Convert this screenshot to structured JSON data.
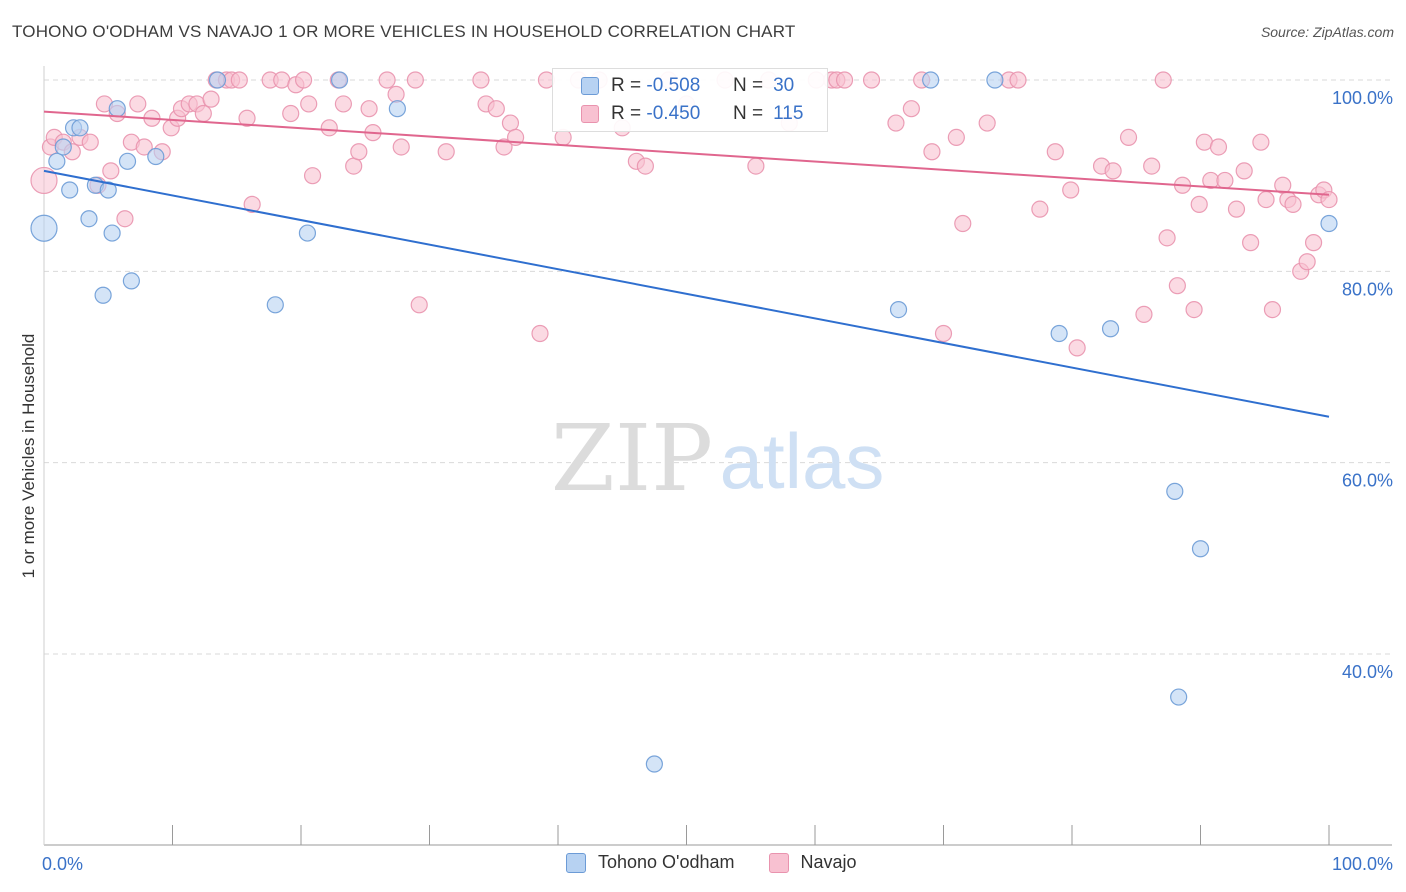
{
  "header": {
    "title": "TOHONO O'ODHAM VS NAVAJO 1 OR MORE VEHICLES IN HOUSEHOLD CORRELATION CHART",
    "source": "Source: ZipAtlas.com"
  },
  "watermark": {
    "zip": "ZIP",
    "atlas": "atlas"
  },
  "stats_legend": [
    {
      "r_label": "R =",
      "r_value": "-0.508",
      "n_label": "N =",
      "n_value": "30"
    },
    {
      "r_label": "R =",
      "r_value": "-0.450",
      "n_label": "N =",
      "n_value": "115"
    }
  ],
  "colors": {
    "tohono_fill": "#b7d2f2",
    "tohono_stroke": "#6c9bd6",
    "tohono_line": "#2f6fcf",
    "navajo_fill": "#f8c1d1",
    "navajo_stroke": "#e993ae",
    "navajo_line": "#e0668e",
    "axis_text": "#3a72c8",
    "grid": "#d9d9d9"
  },
  "chart_data": {
    "type": "scatter",
    "title": "TOHONO O'ODHAM VS NAVAJO 1 OR MORE VEHICLES IN HOUSEHOLD CORRELATION CHART",
    "xlabel": "",
    "ylabel": "1 or more Vehicles in Household",
    "xlim": [
      0,
      100
    ],
    "ylim": [
      20,
      102
    ],
    "x_tick_labels": [
      "0.0%",
      "100.0%"
    ],
    "y_ticks": [
      40,
      60,
      80,
      100
    ],
    "y_tick_labels": [
      "40.0%",
      "60.0%",
      "80.0%",
      "100.0%"
    ],
    "grid": true,
    "legend_position": "bottom-center",
    "series": [
      {
        "name": "Tohono O'odham",
        "r": -0.508,
        "n": 30,
        "trend": {
          "x": [
            0,
            100
          ],
          "y": [
            90.5,
            64.8
          ]
        },
        "points": [
          [
            0,
            84.5,
            1
          ],
          [
            1,
            91.5,
            0
          ],
          [
            1.5,
            93,
            0
          ],
          [
            2,
            88.5,
            0
          ],
          [
            2.3,
            95,
            0
          ],
          [
            2.8,
            95,
            0
          ],
          [
            3.5,
            85.5,
            0
          ],
          [
            4,
            89,
            0
          ],
          [
            4.6,
            77.5,
            0
          ],
          [
            5,
            88.5,
            0
          ],
          [
            5.3,
            84,
            0
          ],
          [
            5.7,
            97,
            0
          ],
          [
            6.5,
            91.5,
            0
          ],
          [
            6.8,
            79,
            0
          ],
          [
            8.7,
            92,
            0
          ],
          [
            13.5,
            100,
            0
          ],
          [
            18,
            76.5,
            0
          ],
          [
            20.5,
            84,
            0
          ],
          [
            23,
            100,
            0
          ],
          [
            27.5,
            97,
            0
          ],
          [
            47.5,
            28.5,
            0
          ],
          [
            66.5,
            76,
            0
          ],
          [
            69,
            100,
            0
          ],
          [
            74,
            100,
            0
          ],
          [
            79,
            73.5,
            0
          ],
          [
            83,
            74,
            0
          ],
          [
            88,
            57,
            0
          ],
          [
            88.3,
            35.5,
            0
          ],
          [
            90,
            51,
            0
          ],
          [
            100,
            85,
            0
          ]
        ]
      },
      {
        "name": "Navajo",
        "r": -0.45,
        "n": 115,
        "trend": {
          "x": [
            0,
            100
          ],
          "y": [
            96.7,
            88.0
          ]
        },
        "points": [
          [
            0,
            89.5,
            1
          ],
          [
            0.5,
            93,
            0
          ],
          [
            0.8,
            94,
            0
          ],
          [
            1.5,
            93.5,
            0
          ],
          [
            2.2,
            92.5,
            0
          ],
          [
            2.8,
            94,
            0
          ],
          [
            3.6,
            93.5,
            0
          ],
          [
            4.2,
            89,
            0
          ],
          [
            4.7,
            97.5,
            0
          ],
          [
            5.2,
            90.5,
            0
          ],
          [
            5.7,
            96.5,
            0
          ],
          [
            6.3,
            85.5,
            0
          ],
          [
            6.8,
            93.5,
            0
          ],
          [
            7.3,
            97.5,
            0
          ],
          [
            7.8,
            93,
            0
          ],
          [
            8.4,
            96,
            0
          ],
          [
            9.2,
            92.5,
            0
          ],
          [
            9.9,
            95,
            0
          ],
          [
            10.4,
            96,
            0
          ],
          [
            10.7,
            97,
            0
          ],
          [
            11.3,
            97.5,
            0
          ],
          [
            11.9,
            97.5,
            0
          ],
          [
            12.4,
            96.5,
            0
          ],
          [
            13,
            98,
            0
          ],
          [
            13.4,
            100,
            0
          ],
          [
            14.2,
            100,
            0
          ],
          [
            14.6,
            100,
            0
          ],
          [
            15.2,
            100,
            0
          ],
          [
            15.8,
            96,
            0
          ],
          [
            16.2,
            87,
            0
          ],
          [
            17.6,
            100,
            0
          ],
          [
            18.5,
            100,
            0
          ],
          [
            19.2,
            96.5,
            0
          ],
          [
            19.6,
            99.5,
            0
          ],
          [
            20.2,
            100,
            0
          ],
          [
            20.6,
            97.5,
            0
          ],
          [
            20.9,
            90,
            0
          ],
          [
            22.2,
            95,
            0
          ],
          [
            22.9,
            100,
            0
          ],
          [
            23.3,
            97.5,
            0
          ],
          [
            24.1,
            91,
            0
          ],
          [
            24.5,
            92.5,
            0
          ],
          [
            25.3,
            97,
            0
          ],
          [
            25.6,
            94.5,
            0
          ],
          [
            26.7,
            100,
            0
          ],
          [
            27.4,
            98.5,
            0
          ],
          [
            27.8,
            93,
            0
          ],
          [
            28.9,
            100,
            0
          ],
          [
            29.2,
            76.5,
            0
          ],
          [
            31.3,
            92.5,
            0
          ],
          [
            34,
            100,
            0
          ],
          [
            34.4,
            97.5,
            0
          ],
          [
            35.2,
            97,
            0
          ],
          [
            35.8,
            93,
            0
          ],
          [
            36.3,
            95.5,
            0
          ],
          [
            36.7,
            94,
            0
          ],
          [
            38.6,
            73.5,
            0
          ],
          [
            39.1,
            100,
            0
          ],
          [
            40.4,
            94,
            0
          ],
          [
            41.6,
            100,
            0
          ],
          [
            43.2,
            100,
            0
          ],
          [
            45,
            95,
            0
          ],
          [
            46.1,
            91.5,
            0
          ],
          [
            46.8,
            91,
            0
          ],
          [
            48.6,
            100,
            0
          ],
          [
            50,
            97.5,
            0
          ],
          [
            53,
            100,
            0
          ],
          [
            55.4,
            91,
            0
          ],
          [
            56.4,
            100,
            0
          ],
          [
            58,
            95.5,
            0
          ],
          [
            60.1,
            100,
            0
          ],
          [
            61.3,
            100,
            0
          ],
          [
            61.7,
            100,
            0
          ],
          [
            62.3,
            100,
            0
          ],
          [
            64.4,
            100,
            0
          ],
          [
            66.3,
            95.5,
            0
          ],
          [
            67.5,
            97,
            0
          ],
          [
            68.3,
            100,
            0
          ],
          [
            69.1,
            92.5,
            0
          ],
          [
            70,
            73.5,
            0
          ],
          [
            71,
            94,
            0
          ],
          [
            71.5,
            85,
            0
          ],
          [
            73.4,
            95.5,
            0
          ],
          [
            75.1,
            100,
            0
          ],
          [
            75.8,
            100,
            0
          ],
          [
            77.5,
            86.5,
            0
          ],
          [
            78.7,
            92.5,
            0
          ],
          [
            79.9,
            88.5,
            0
          ],
          [
            80.4,
            72,
            0
          ],
          [
            82.3,
            91,
            0
          ],
          [
            83.2,
            90.5,
            0
          ],
          [
            84.4,
            94,
            0
          ],
          [
            85.6,
            75.5,
            0
          ],
          [
            86.2,
            91,
            0
          ],
          [
            87.1,
            100,
            0
          ],
          [
            87.4,
            83.5,
            0
          ],
          [
            88.2,
            78.5,
            0
          ],
          [
            88.6,
            89,
            0
          ],
          [
            89.5,
            76,
            0
          ],
          [
            89.9,
            87,
            0
          ],
          [
            90.3,
            93.5,
            0
          ],
          [
            90.8,
            89.5,
            0
          ],
          [
            91.4,
            93,
            0
          ],
          [
            91.9,
            89.5,
            0
          ],
          [
            92.8,
            86.5,
            0
          ],
          [
            93.4,
            90.5,
            0
          ],
          [
            93.9,
            83,
            0
          ],
          [
            94.7,
            93.5,
            0
          ],
          [
            95.1,
            87.5,
            0
          ],
          [
            95.6,
            76,
            0
          ],
          [
            96.4,
            89,
            0
          ],
          [
            96.8,
            87.5,
            0
          ],
          [
            97.2,
            87,
            0
          ],
          [
            97.8,
            80,
            0
          ],
          [
            98.3,
            81,
            0
          ],
          [
            98.8,
            83,
            0
          ],
          [
            99.2,
            88,
            0
          ],
          [
            99.6,
            88.5,
            0
          ],
          [
            100,
            87.5,
            0
          ]
        ]
      }
    ]
  }
}
